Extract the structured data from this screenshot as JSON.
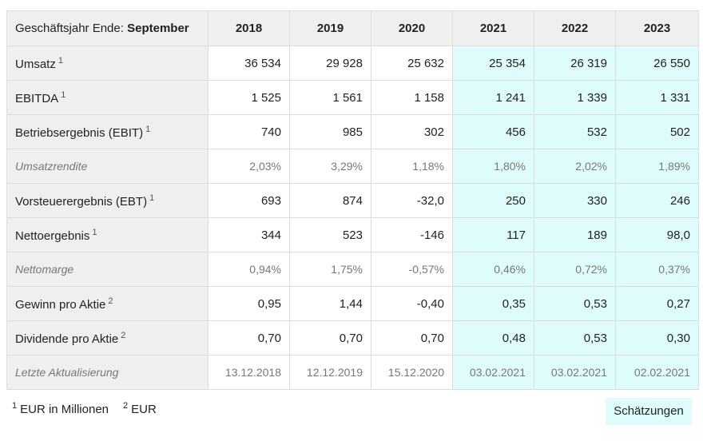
{
  "table": {
    "header": {
      "label": "Geschäftsjahr Ende:",
      "label_bold": "September",
      "years": [
        "2018",
        "2019",
        "2020",
        "2021",
        "2022",
        "2023"
      ],
      "estimated": [
        false,
        false,
        false,
        true,
        true,
        true
      ]
    },
    "rows": [
      {
        "label": "Umsatz",
        "note": "1",
        "italic": false,
        "values": [
          "36 534",
          "29 928",
          "25 632",
          "25 354",
          "26 319",
          "26 550"
        ]
      },
      {
        "label": "EBITDA",
        "note": "1",
        "italic": false,
        "values": [
          "1 525",
          "1 561",
          "1 158",
          "1 241",
          "1 339",
          "1 331"
        ]
      },
      {
        "label": "Betriebsergebnis (EBIT)",
        "note": "1",
        "italic": false,
        "values": [
          "740",
          "985",
          "302",
          "456",
          "532",
          "502"
        ]
      },
      {
        "label": "Umsatzrendite",
        "italic": true,
        "values": [
          "2,03%",
          "3,29%",
          "1,18%",
          "1,80%",
          "2,02%",
          "1,89%"
        ]
      },
      {
        "label": "Vorsteuerergebnis (EBT)",
        "note": "1",
        "italic": false,
        "values": [
          "693",
          "874",
          "-32,0",
          "250",
          "330",
          "246"
        ]
      },
      {
        "label": "Nettoergebnis",
        "note": "1",
        "italic": false,
        "values": [
          "344",
          "523",
          "-146",
          "117",
          "189",
          "98,0"
        ]
      },
      {
        "label": "Nettomarge",
        "italic": true,
        "values": [
          "0,94%",
          "1,75%",
          "-0,57%",
          "0,46%",
          "0,72%",
          "0,37%"
        ]
      },
      {
        "label": "Gewinn pro Aktie",
        "note": "2",
        "italic": false,
        "values": [
          "0,95",
          "1,44",
          "-0,40",
          "0,35",
          "0,53",
          "0,27"
        ]
      },
      {
        "label": "Dividende pro Aktie",
        "note": "2",
        "italic": false,
        "values": [
          "0,70",
          "0,70",
          "0,70",
          "0,48",
          "0,53",
          "0,30"
        ]
      },
      {
        "label": "Letzte Aktualisierung",
        "italic": true,
        "values": [
          "13.12.2018",
          "12.12.2019",
          "15.12.2020",
          "03.02.2021",
          "03.02.2021",
          "02.02.2021"
        ]
      }
    ]
  },
  "footnotes": [
    {
      "mark": "1",
      "text": "EUR in Millionen"
    },
    {
      "mark": "2",
      "text": "EUR"
    }
  ],
  "legend": "Schätzungen"
}
